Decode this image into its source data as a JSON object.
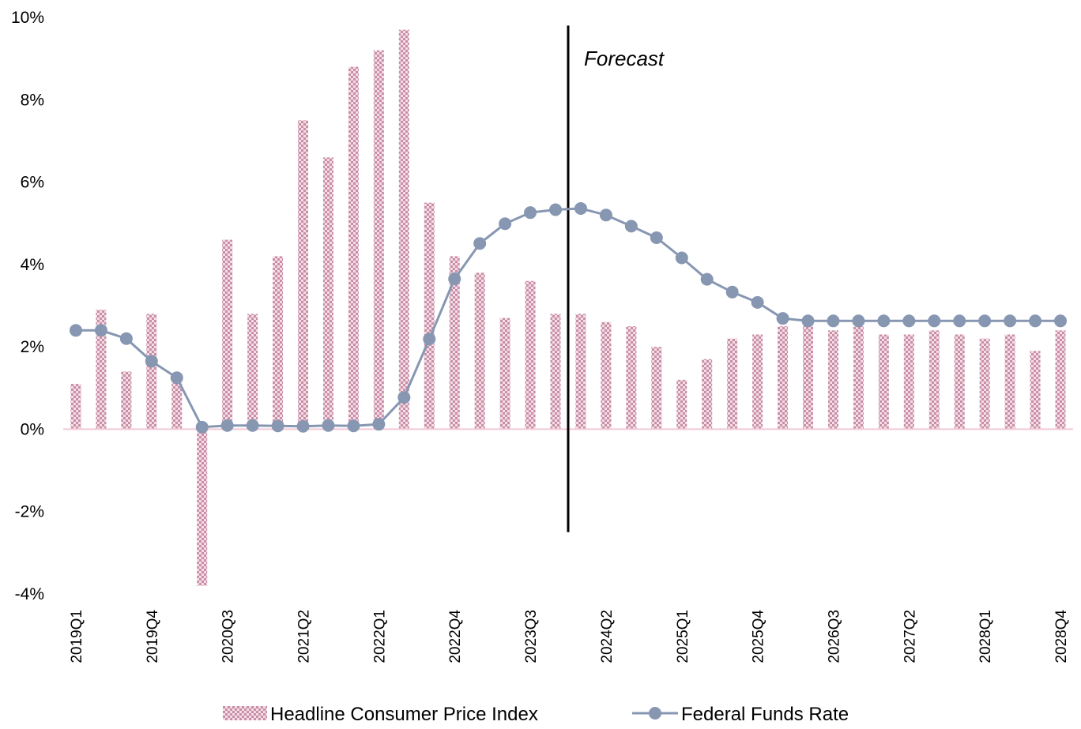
{
  "chart_data": {
    "type": "bar",
    "title": "",
    "xlabel": "",
    "ylabel": "",
    "ylim": [
      -4,
      10
    ],
    "y_ticks": [
      "10%",
      "8%",
      "6%",
      "4%",
      "2%",
      "0%",
      "-2%",
      "-4%"
    ],
    "y_tick_values": [
      10,
      8,
      6,
      4,
      2,
      0,
      -2,
      -4
    ],
    "grid": false,
    "legend_position": "bottom",
    "categories": [
      "2019Q1",
      "2019Q2",
      "2019Q3",
      "2019Q4",
      "2020Q1",
      "2020Q2",
      "2020Q3",
      "2020Q4",
      "2021Q1",
      "2021Q2",
      "2021Q3",
      "2021Q4",
      "2022Q1",
      "2022Q2",
      "2022Q3",
      "2022Q4",
      "2023Q1",
      "2023Q2",
      "2023Q3",
      "2023Q4",
      "2024Q1",
      "2024Q2",
      "2024Q3",
      "2024Q4",
      "2025Q1",
      "2025Q2",
      "2025Q3",
      "2025Q4",
      "2026Q1",
      "2026Q2",
      "2026Q3",
      "2026Q4",
      "2027Q1",
      "2027Q2",
      "2027Q3",
      "2027Q4",
      "2028Q1",
      "2028Q2",
      "2028Q3",
      "2028Q4"
    ],
    "x_tick_labels": [
      "2019Q1",
      "2019Q4",
      "2020Q3",
      "2021Q2",
      "2022Q1",
      "2022Q4",
      "2023Q3",
      "2024Q2",
      "2025Q1",
      "2025Q4",
      "2026Q3",
      "2027Q2",
      "2028Q1",
      "2028Q4"
    ],
    "series": [
      {
        "name": "Headline Consumer Price Index",
        "kind": "bar",
        "color": "#c88fa6",
        "values": [
          1.1,
          2.9,
          1.4,
          2.8,
          1.2,
          -3.8,
          4.6,
          2.8,
          4.2,
          7.5,
          6.6,
          8.8,
          9.2,
          9.7,
          5.5,
          4.2,
          3.8,
          2.7,
          3.6,
          2.8,
          2.8,
          2.6,
          2.5,
          2.0,
          1.2,
          1.7,
          2.2,
          2.3,
          2.5,
          2.6,
          2.4,
          2.5,
          2.3,
          2.3,
          2.4,
          2.3,
          2.2,
          2.3,
          1.9,
          2.4
        ]
      },
      {
        "name": "Federal Funds Rate",
        "kind": "line",
        "color": "#8797b2",
        "values": [
          2.4,
          2.4,
          2.2,
          1.65,
          1.25,
          0.05,
          0.09,
          0.09,
          0.08,
          0.07,
          0.09,
          0.08,
          0.12,
          0.77,
          2.19,
          3.65,
          4.51,
          4.99,
          5.26,
          5.33,
          5.36,
          5.2,
          4.93,
          4.65,
          4.16,
          3.64,
          3.33,
          3.08,
          2.69,
          2.63,
          2.63,
          2.63,
          2.63,
          2.63,
          2.63,
          2.63,
          2.63,
          2.63,
          2.63,
          2.63
        ]
      }
    ],
    "annotations": [
      {
        "text": "Forecast",
        "between": [
          "2023Q4",
          "2024Q1"
        ]
      }
    ]
  }
}
